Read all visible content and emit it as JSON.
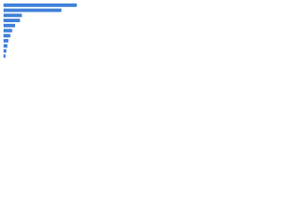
{
  "chart_data": {
    "type": "bar",
    "orientation": "horizontal",
    "categories": [
      null,
      null,
      null,
      null,
      null,
      null,
      null,
      null,
      null,
      null,
      null
    ],
    "values": [
      76,
      60,
      19,
      17,
      12,
      9,
      7,
      5,
      4,
      3,
      2
    ],
    "color": "#3f7fd9",
    "xlim": [
      0,
      85
    ]
  }
}
